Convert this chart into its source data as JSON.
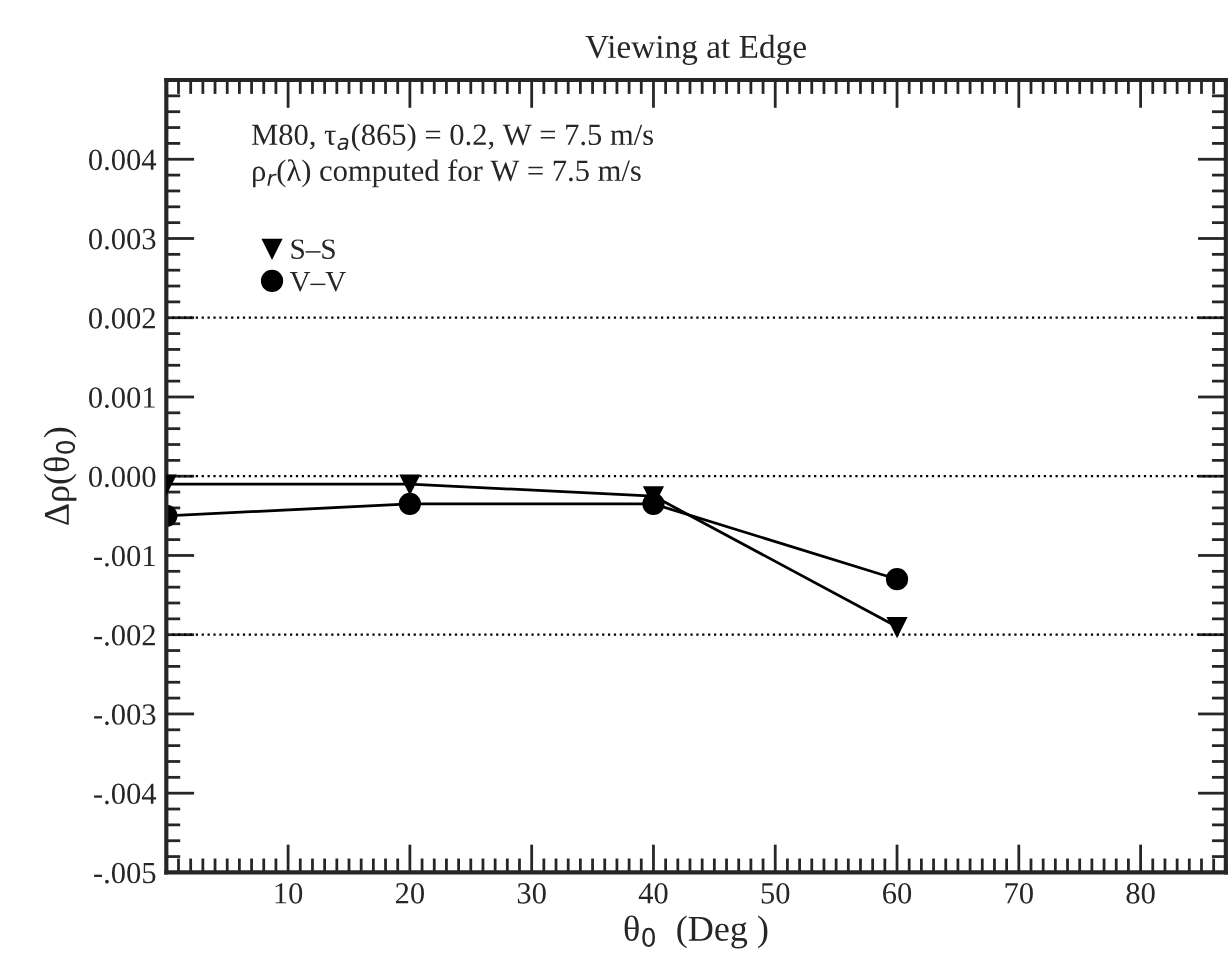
{
  "chart_data": {
    "type": "line",
    "title": "Viewing at Edge",
    "xlabel": "θ$_{0}$  (Deg )",
    "ylabel": "Δρ(θ$_{0}$)",
    "annotations": [
      "M80, τ$_{a}$(865) = 0.2, W = 7.5 m/s",
      "ρ$_{r}$(λ) computed for W = 7.5 m/s"
    ],
    "series": [
      {
        "name": "S–S",
        "color": "#000000",
        "marker": "triangle",
        "x": [
          0,
          20,
          40,
          60
        ],
        "values": [
          -0.0001,
          -0.0001,
          -0.00025,
          -0.0019
        ]
      },
      {
        "name": "V–V",
        "color": "#000000",
        "marker": "circle",
        "x": [
          0,
          20,
          40,
          60
        ],
        "values": [
          -0.0005,
          -0.00035,
          -0.00035,
          -0.0013
        ]
      }
    ],
    "xlim": [
      0,
      87
    ],
    "xticks": [
      10,
      20,
      30,
      40,
      50,
      60,
      70,
      80
    ],
    "ylim": [
      -0.005,
      0.005
    ],
    "yticks": [
      {
        "value": -0.005,
        "label": "-.005"
      },
      {
        "value": -0.004,
        "label": "-.004"
      },
      {
        "value": -0.003,
        "label": "-.003"
      },
      {
        "value": -0.002,
        "label": "-.002"
      },
      {
        "value": -0.001,
        "label": "-.001"
      },
      {
        "value": 0.0,
        "label": "0.000"
      },
      {
        "value": 0.001,
        "label": "0.001"
      },
      {
        "value": 0.002,
        "label": "0.002"
      },
      {
        "value": 0.003,
        "label": "0.003"
      },
      {
        "value": 0.004,
        "label": "0.004"
      },
      {
        "value": 0.005,
        "label": null
      }
    ],
    "ref_lines": [
      {
        "axis": "y",
        "value": 0.002,
        "line_style": "dotted"
      },
      {
        "axis": "y",
        "value": 0.0,
        "line_style": "dotted"
      },
      {
        "axis": "y",
        "value": -0.002,
        "line_style": "dotted"
      }
    ],
    "grid": false,
    "legend": "top left",
    "line_style": "solid"
  }
}
